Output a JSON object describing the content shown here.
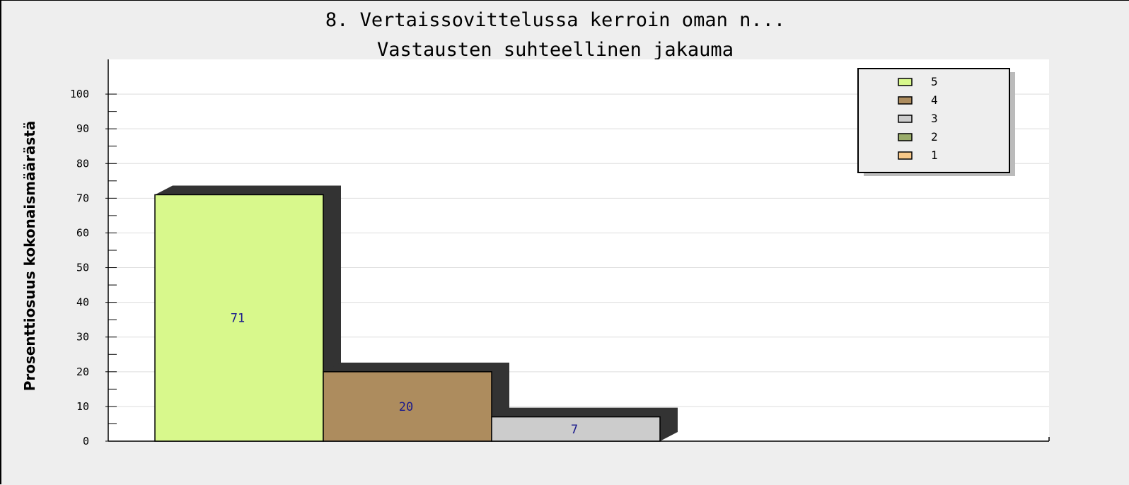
{
  "chart_data": {
    "type": "bar",
    "title": "8. Vertaissovittelussa kerroin oman n...",
    "subtitle": "Vastausten suhteellinen jakauma",
    "xlabel": "",
    "ylabel": "Prosenttiosuus kokonaismäärästä",
    "ylim": [
      0,
      100
    ],
    "yticks": [
      0,
      10,
      20,
      30,
      40,
      50,
      60,
      70,
      80,
      90,
      100
    ],
    "grid": true,
    "legend_position": "top-right",
    "series": [
      {
        "name": "5",
        "value": 71,
        "label": "71",
        "color": "#d8f88c"
      },
      {
        "name": "4",
        "value": 20,
        "label": "20",
        "color": "#ad8c5e"
      },
      {
        "name": "3",
        "value": 7,
        "label": "7",
        "color": "#cccccc"
      },
      {
        "name": "2",
        "value": 0,
        "label": "",
        "color": "#9aac6a"
      },
      {
        "name": "1",
        "value": 0,
        "label": "",
        "color": "#f8c888"
      }
    ],
    "colors": {
      "shadow": "#333333",
      "plot_background": "#ffffff",
      "grid": "#dddddd",
      "value_label": "#1a1a8c"
    }
  }
}
